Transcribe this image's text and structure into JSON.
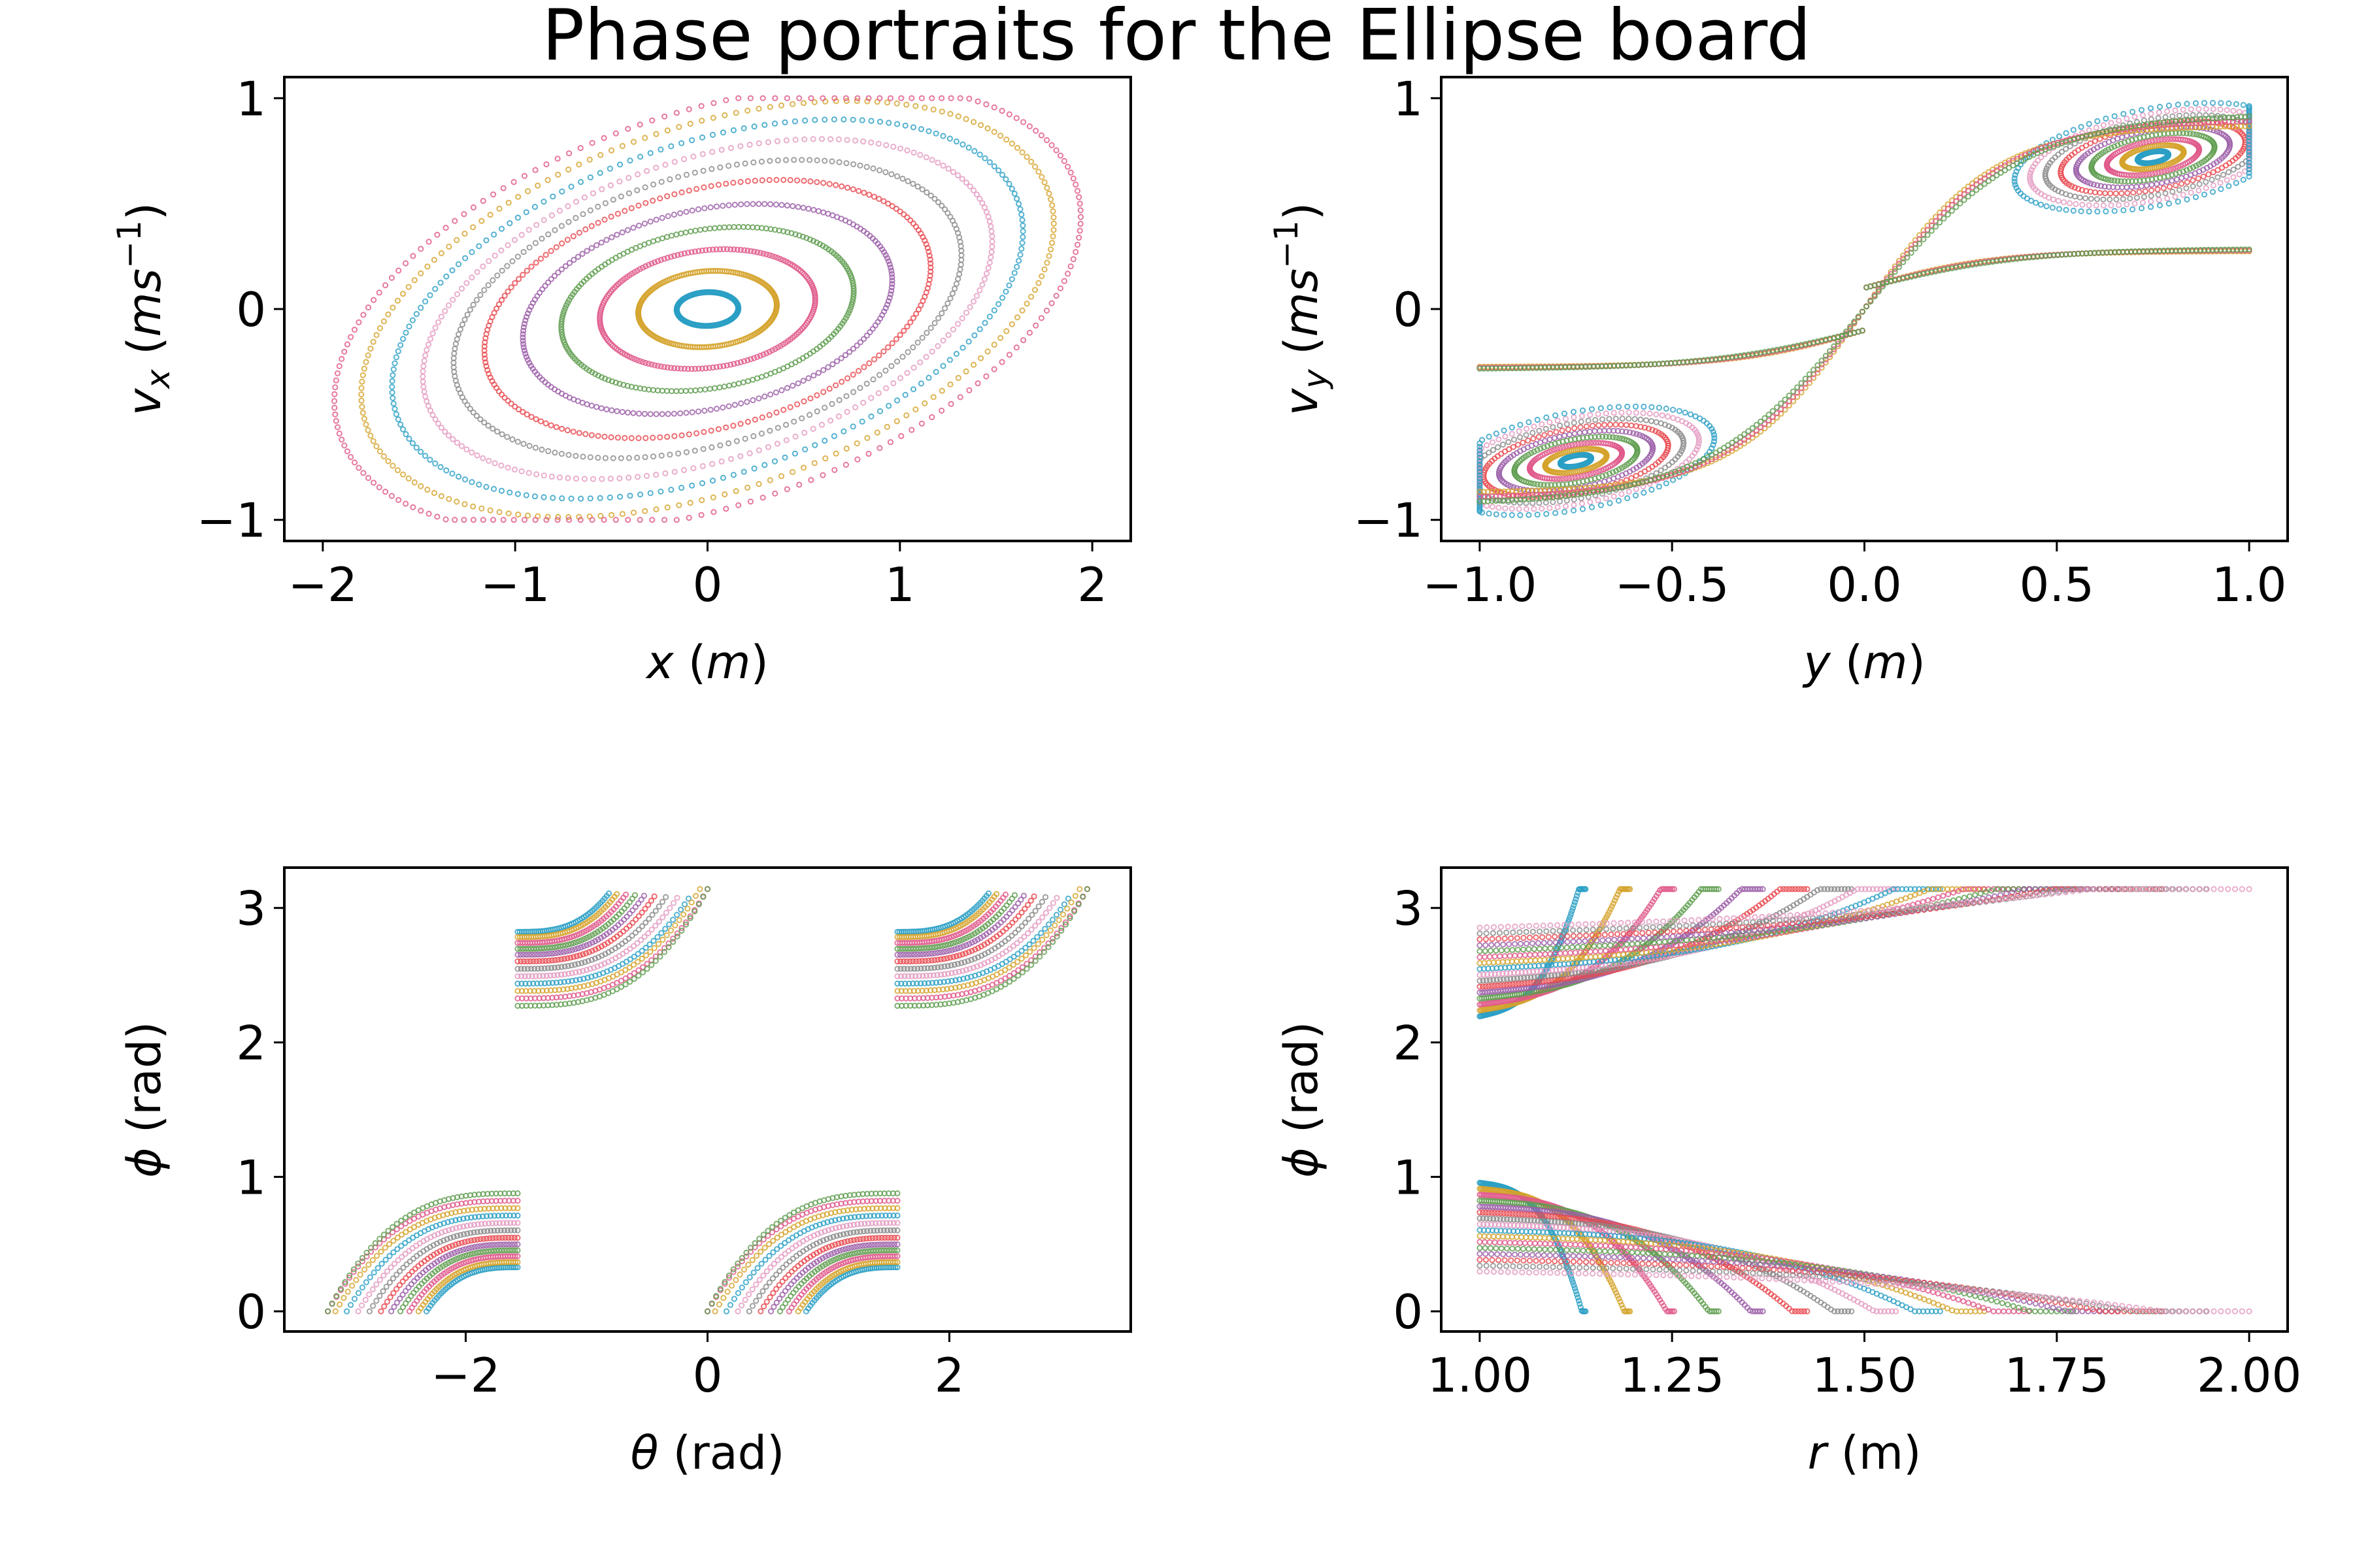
{
  "figure": {
    "title": "Phase portraits for the Ellipse board"
  },
  "palette": {
    "cycle": [
      "#2a9fc4",
      "#d4a32a",
      "#e0588a",
      "#5e9c4e",
      "#9b5ea8",
      "#e8474d",
      "#8a8a8a",
      "#e49ac0"
    ],
    "note_colors": [
      "cyan",
      "gold",
      "pink",
      "green",
      "purple",
      "red",
      "grey"
    ]
  },
  "chart_data": [
    {
      "type": "scatter",
      "panel": "top-left",
      "xlabel": "x (m)",
      "ylabel": "v_x (ms^-1)",
      "xlim": [
        -2.2,
        2.2
      ],
      "ylim": [
        -1.1,
        1.1
      ],
      "xticks": [
        -2,
        -1,
        0,
        1,
        2
      ],
      "xtick_labels": [
        "−2",
        "−1",
        "0",
        "1",
        "2"
      ],
      "yticks": [
        -1,
        0,
        1
      ],
      "ytick_labels": [
        "−1",
        "0",
        "1"
      ],
      "grid": false,
      "family": "ellipse_x",
      "orbit_levels": [
        0.08,
        0.18,
        0.28,
        0.38,
        0.48,
        0.58,
        0.66,
        0.74,
        0.82,
        0.9,
        0.97
      ]
    },
    {
      "type": "scatter",
      "panel": "top-right",
      "xlabel": "y (m)",
      "ylabel": "v_y (ms^-1)",
      "xlim": [
        -1.1,
        1.1
      ],
      "ylim": [
        -1.1,
        1.1
      ],
      "xticks": [
        -1.0,
        -0.5,
        0.0,
        0.5,
        1.0
      ],
      "xtick_labels": [
        "−1.0",
        "−0.5",
        "0.0",
        "0.5",
        "1.0"
      ],
      "yticks": [
        -1,
        0,
        1
      ],
      "ytick_labels": [
        "−1",
        "0",
        "1"
      ],
      "grid": false,
      "family": "ellipse_y",
      "orbit_levels": [
        0.1,
        0.2,
        0.3,
        0.4,
        0.5,
        0.6,
        0.7,
        0.8,
        0.9,
        1.0,
        1.12,
        1.25
      ]
    },
    {
      "type": "scatter",
      "panel": "bottom-left",
      "xlabel": "θ (rad)",
      "ylabel": "ϕ (rad)",
      "xlim": [
        -3.5,
        3.5
      ],
      "ylim": [
        -0.15,
        3.3
      ],
      "xticks": [
        -2,
        0,
        2
      ],
      "xtick_labels": [
        "−2",
        "0",
        "2"
      ],
      "yticks": [
        0,
        1,
        2,
        3
      ],
      "ytick_labels": [
        "0",
        "1",
        "2",
        "3"
      ],
      "grid": false,
      "family": "theta_phi",
      "orbit_levels": [
        0.05,
        0.12,
        0.2,
        0.28,
        0.36,
        0.45,
        0.55,
        0.65,
        0.75,
        0.85,
        0.95,
        1.05
      ]
    },
    {
      "type": "scatter",
      "panel": "bottom-right",
      "xlabel": "r (m)",
      "ylabel": "ϕ (rad)",
      "xlim": [
        0.95,
        2.05
      ],
      "ylim": [
        -0.15,
        3.3
      ],
      "xticks": [
        1.0,
        1.25,
        1.5,
        1.75,
        2.0
      ],
      "xtick_labels": [
        "1.00",
        "1.25",
        "1.50",
        "1.75",
        "2.00"
      ],
      "yticks": [
        0,
        1,
        2,
        3
      ],
      "ytick_labels": [
        "0",
        "1",
        "2",
        "3"
      ],
      "grid": false,
      "family": "r_phi",
      "orbit_levels": [
        0.08,
        0.16,
        0.24,
        0.32,
        0.4,
        0.48,
        0.56,
        0.64,
        0.72,
        0.8,
        0.88,
        0.96,
        1.04,
        1.12,
        1.2,
        1.28
      ]
    }
  ]
}
